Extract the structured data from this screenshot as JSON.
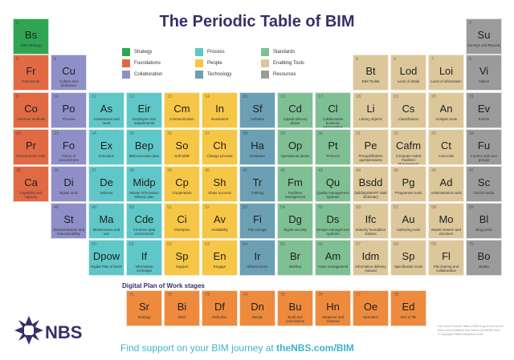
{
  "title": "The Periodic Table of BIM",
  "legend": [
    {
      "label": "Strategy",
      "color": "#2fa553"
    },
    {
      "label": "Foundations",
      "color": "#e06a44"
    },
    {
      "label": "Collaboration",
      "color": "#8f8fc8"
    },
    {
      "label": "Process",
      "color": "#5fc7c7"
    },
    {
      "label": "People",
      "color": "#f6c646"
    },
    {
      "label": "Technology",
      "color": "#6b9fb3"
    },
    {
      "label": "Standards",
      "color": "#7fbf94"
    },
    {
      "label": "Enabling Tools",
      "color": "#dcc79b"
    },
    {
      "label": "Resources",
      "color": "#9b9b9b"
    }
  ],
  "elements": [
    {
      "n": "1",
      "s": "Bs",
      "name": "BIM Strategy",
      "cat": "strategy"
    },
    {
      "n": "2",
      "s": "Su",
      "name": "Surveys and Reports",
      "cat": "resources"
    },
    {
      "n": "3",
      "s": "Fr",
      "name": "Framework",
      "cat": "foundations"
    },
    {
      "n": "4",
      "s": "Cu",
      "name": "Culture and behaviour",
      "cat": "collaboration"
    },
    {
      "n": "5",
      "s": "Bt",
      "name": "BIM Toolkit",
      "cat": "enabling"
    },
    {
      "n": "6",
      "s": "Lod",
      "name": "Level of detail",
      "cat": "enabling"
    },
    {
      "n": "7",
      "s": "Loi",
      "name": "Level of information",
      "cat": "enabling"
    },
    {
      "n": "8",
      "s": "Vi",
      "name": "Videos",
      "cat": "resources"
    },
    {
      "n": "9",
      "s": "Co",
      "name": "Common methods",
      "cat": "foundations"
    },
    {
      "n": "10",
      "s": "Po",
      "name": "Process",
      "cat": "collaboration"
    },
    {
      "n": "11",
      "s": "As",
      "name": "Assessment and need",
      "cat": "process"
    },
    {
      "n": "12",
      "s": "Eir",
      "name": "Employers info requirements",
      "cat": "process"
    },
    {
      "n": "13",
      "s": "Cm",
      "name": "Communication",
      "cat": "people"
    },
    {
      "n": "14",
      "s": "In",
      "name": "Investment",
      "cat": "people"
    },
    {
      "n": "15",
      "s": "Sf",
      "name": "Software",
      "cat": "technology"
    },
    {
      "n": "16",
      "s": "Cd",
      "name": "Capital delivery phase",
      "cat": "standards"
    },
    {
      "n": "17",
      "s": "Cl",
      "name": "Collaborative business relationships",
      "cat": "standards"
    },
    {
      "n": "18",
      "s": "Li",
      "name": "Library objects",
      "cat": "enabling"
    },
    {
      "n": "19",
      "s": "Cs",
      "name": "Classification",
      "cat": "enabling"
    },
    {
      "n": "20",
      "s": "An",
      "name": "Analysis tools",
      "cat": "enabling"
    },
    {
      "n": "21",
      "s": "Ev",
      "name": "Events",
      "cat": "resources"
    },
    {
      "n": "22",
      "s": "Pr",
      "name": "Procurement route",
      "cat": "foundations"
    },
    {
      "n": "23",
      "s": "Fo",
      "name": "Forms of procurement",
      "cat": "collaboration"
    },
    {
      "n": "24",
      "s": "Ex",
      "name": "Execution",
      "cat": "process"
    },
    {
      "n": "25",
      "s": "Bep",
      "name": "BIM execution plan",
      "cat": "process"
    },
    {
      "n": "26",
      "s": "So",
      "name": "Soft skills",
      "cat": "people"
    },
    {
      "n": "27",
      "s": "Ch",
      "name": "Change process",
      "cat": "people"
    },
    {
      "n": "28",
      "s": "Ha",
      "name": "Hardware",
      "cat": "technology"
    },
    {
      "n": "29",
      "s": "Op",
      "name": "Operational phase",
      "cat": "standards"
    },
    {
      "n": "30",
      "s": "Pt",
      "name": "Protocol",
      "cat": "standards"
    },
    {
      "n": "31",
      "s": "Pe",
      "name": "Prequalification questionnaires",
      "cat": "enabling"
    },
    {
      "n": "32",
      "s": "Cafm",
      "name": "Computer Aided Facilities Management",
      "cat": "enabling"
    },
    {
      "n": "33",
      "s": "Ct",
      "name": "Cost tools",
      "cat": "enabling"
    },
    {
      "n": "34",
      "s": "Fu",
      "name": "Forums and user groups",
      "cat": "resources"
    },
    {
      "n": "35",
      "s": "Ca",
      "name": "Capability and capacity",
      "cat": "foundations"
    },
    {
      "n": "36",
      "s": "Di",
      "name": "Digital tools",
      "cat": "collaboration"
    },
    {
      "n": "37",
      "s": "De",
      "name": "Delivery",
      "cat": "process"
    },
    {
      "n": "38",
      "s": "Midp",
      "name": "Master information delivery plan",
      "cat": "process"
    },
    {
      "n": "39",
      "s": "Cp",
      "name": "Cooperation",
      "cat": "people"
    },
    {
      "n": "40",
      "s": "Sh",
      "name": "Share success",
      "cat": "people"
    },
    {
      "n": "41",
      "s": "Tr",
      "name": "Training",
      "cat": "technology"
    },
    {
      "n": "42",
      "s": "Fm",
      "name": "Facilities management",
      "cat": "standards"
    },
    {
      "n": "43",
      "s": "Qu",
      "name": "Quality management systems",
      "cat": "standards"
    },
    {
      "n": "44",
      "s": "Bsdd",
      "name": "buildingSMART data dictionary",
      "cat": "enabling"
    },
    {
      "n": "45",
      "s": "Pg",
      "name": "Programme tools",
      "cat": "enabling"
    },
    {
      "n": "46",
      "s": "Ad",
      "name": "Administration tools",
      "cat": "enabling"
    },
    {
      "n": "47",
      "s": "Sc",
      "name": "Social media",
      "cat": "resources"
    },
    {
      "n": "48",
      "s": "St",
      "name": "Standardisation and Interoperability",
      "cat": "collaboration"
    },
    {
      "n": "49",
      "s": "Ma",
      "name": "Maintenance and use",
      "cat": "process"
    },
    {
      "n": "50",
      "s": "Cde",
      "name": "Common data environment",
      "cat": "process"
    },
    {
      "n": "51",
      "s": "Ci",
      "name": "Champion",
      "cat": "people"
    },
    {
      "n": "52",
      "s": "Av",
      "name": "Availability",
      "cat": "people"
    },
    {
      "n": "53",
      "s": "Fi",
      "name": "File storage",
      "cat": "technology"
    },
    {
      "n": "54",
      "s": "Dg",
      "name": "Digital security",
      "cat": "standards"
    },
    {
      "n": "55",
      "s": "Ds",
      "name": "Design management systems",
      "cat": "standards"
    },
    {
      "n": "56",
      "s": "Ifc",
      "name": "Industry foundation classes",
      "cat": "enabling"
    },
    {
      "n": "57",
      "s": "Au",
      "name": "Authoring tools",
      "cat": "enabling"
    },
    {
      "n": "58",
      "s": "Mo",
      "name": "Model viewers and checkers",
      "cat": "enabling"
    },
    {
      "n": "59",
      "s": "Bl",
      "name": "Blog posts",
      "cat": "resources"
    },
    {
      "n": "60",
      "s": "Dpow",
      "name": "Digital Plan of Work",
      "cat": "process"
    },
    {
      "n": "61",
      "s": "If",
      "name": "Information exchange",
      "cat": "process"
    },
    {
      "n": "62",
      "s": "Sp",
      "name": "Support",
      "cat": "people"
    },
    {
      "n": "63",
      "s": "En",
      "name": "Engage",
      "cat": "people"
    },
    {
      "n": "64",
      "s": "Ir",
      "name": "Infrastructure",
      "cat": "technology"
    },
    {
      "n": "65",
      "s": "Br",
      "name": "Briefing",
      "cat": "standards"
    },
    {
      "n": "66",
      "s": "Am",
      "name": "Asset management",
      "cat": "standards"
    },
    {
      "n": "67",
      "s": "Idm",
      "name": "Information delivery manual",
      "cat": "enabling"
    },
    {
      "n": "68",
      "s": "Sp",
      "name": "Specification tools",
      "cat": "enabling"
    },
    {
      "n": "69",
      "s": "Fl",
      "name": "File sharing and collaboration",
      "cat": "enabling"
    },
    {
      "n": "70",
      "s": "Bo",
      "name": "Books",
      "cat": "resources"
    }
  ],
  "stages_heading": "Digital Plan of Work stages",
  "stages": [
    {
      "n": "71",
      "s": "Sr",
      "name": "Strategy"
    },
    {
      "n": "72",
      "s": "Bi",
      "name": "Brief"
    },
    {
      "n": "73",
      "s": "Df",
      "name": "Definition"
    },
    {
      "n": "74",
      "s": "Dn",
      "name": "Design"
    },
    {
      "n": "75",
      "s": "Bu",
      "name": "Build and commission"
    },
    {
      "n": "76",
      "s": "Hn",
      "name": "Handover and closeout"
    },
    {
      "n": "77",
      "s": "Oe",
      "name": "Operation"
    },
    {
      "n": "78",
      "s": "Ed",
      "name": "End of life"
    }
  ],
  "logo_text": "NBS",
  "footer_lead": "Find support on your BIM journey at",
  "footer_link": "theNBS.com/BIM",
  "note_text": "Use of the Periodic Table of BIM is governed by the terms and conditions and licence at theNBS.com",
  "copyright": "© Copyright RIBA Enterprises 2016"
}
